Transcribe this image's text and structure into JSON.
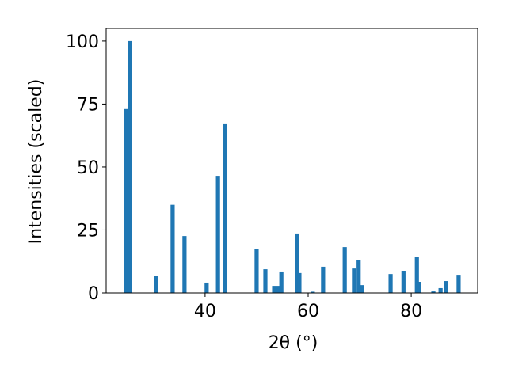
{
  "chart_data": {
    "type": "bar",
    "xlabel": "2θ (°)",
    "ylabel": "Intensities (scaled)",
    "x": [
      24.7,
      25.4,
      30.5,
      33.7,
      36.0,
      40.3,
      42.5,
      43.9,
      50.0,
      51.7,
      53.4,
      54.2,
      54.8,
      57.8,
      58.3,
      60.9,
      62.9,
      67.1,
      68.9,
      69.8,
      70.5,
      76.0,
      78.5,
      81.1,
      81.5,
      84.3,
      85.7,
      86.8,
      89.2
    ],
    "values": [
      73,
      100,
      6.6,
      35,
      22.6,
      4.1,
      46.5,
      67.3,
      17.3,
      9.4,
      2.8,
      2.8,
      8.5,
      23.6,
      7.9,
      0.5,
      10.4,
      18.2,
      9.7,
      13.2,
      3.1,
      7.5,
      8.8,
      14.2,
      4.4,
      0.6,
      1.9,
      4.7,
      7.2
    ],
    "color": "#1f77b4",
    "xlim": [
      20.8,
      92.9
    ],
    "ylim": [
      0,
      105
    ],
    "xticks": [
      40,
      60,
      80
    ],
    "yticks": [
      0,
      25,
      50,
      75,
      100
    ],
    "grid": false
  }
}
